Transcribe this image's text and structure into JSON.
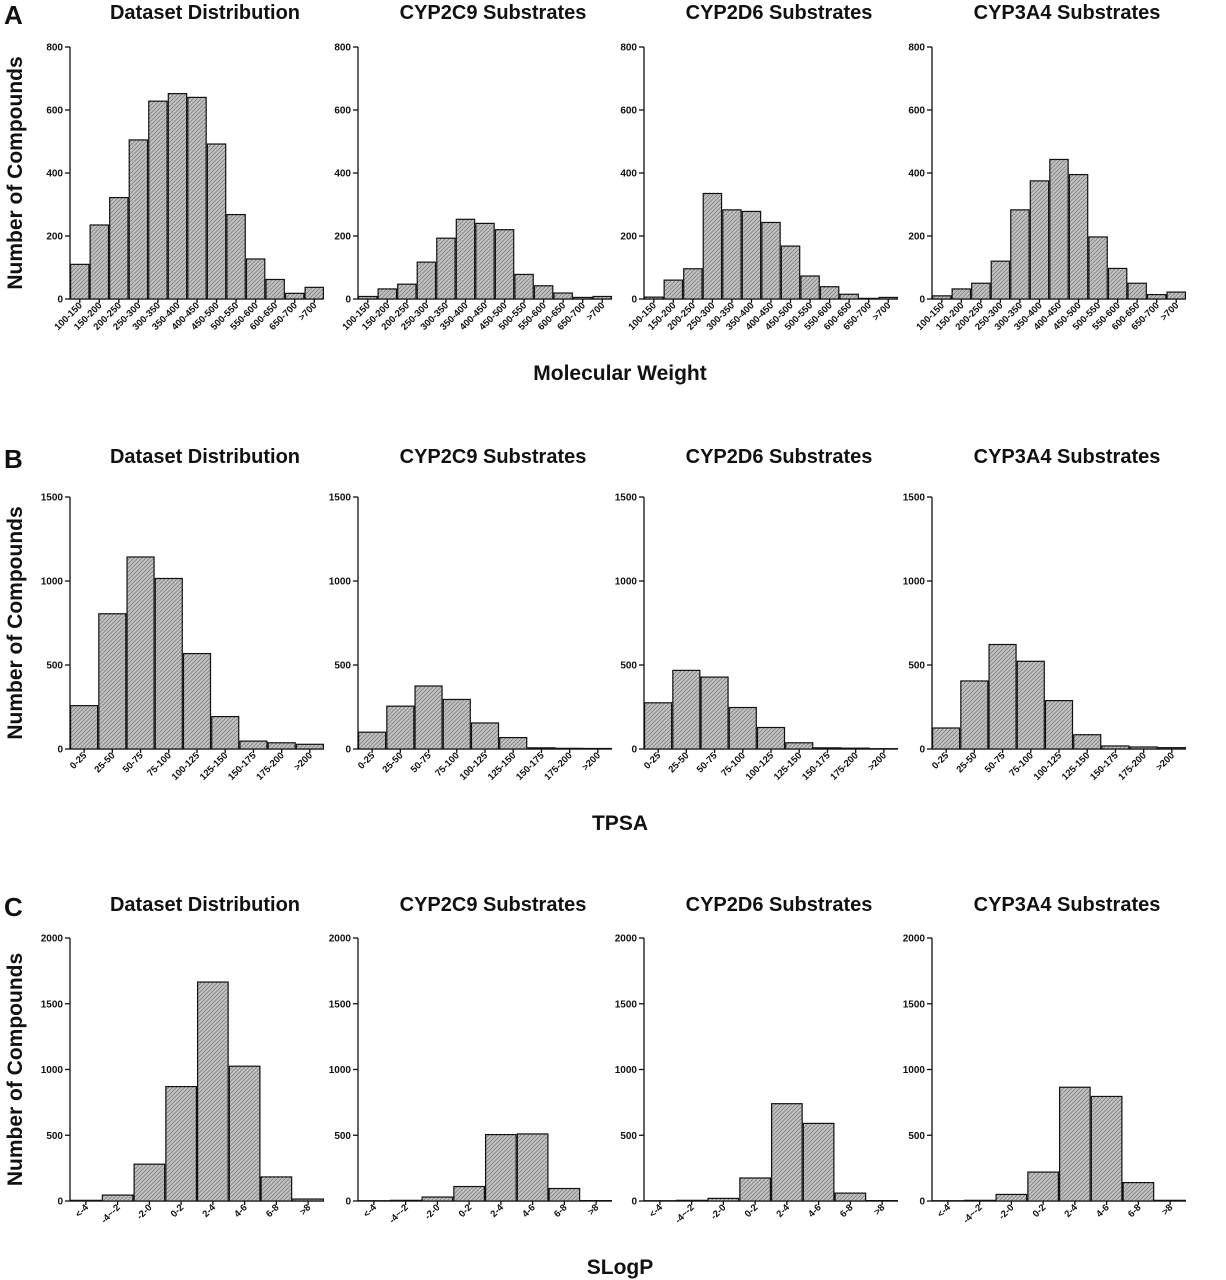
{
  "figure": {
    "ylabel": "Number of Compounds",
    "bar_color": "#bdbdbd"
  },
  "chart_data": [
    {
      "panel": "A",
      "xlabel": "Molecular Weight",
      "ylim": [
        0,
        800
      ],
      "yticks": [
        0,
        200,
        400,
        600,
        800
      ],
      "categories": [
        "100-150",
        "150-200",
        "200-250",
        "250-300",
        "300-350",
        "350-400",
        "400-450",
        "450-500",
        "500-550",
        "550-600",
        "600-650",
        "650-700",
        ">700"
      ],
      "charts": [
        {
          "type": "bar",
          "title": "Dataset Distribution",
          "values": [
            110,
            235,
            322,
            505,
            628,
            652,
            640,
            492,
            268,
            127,
            62,
            18,
            37
          ]
        },
        {
          "type": "bar",
          "title": "CYP2C9 Substrates",
          "values": [
            8,
            32,
            47,
            117,
            193,
            253,
            240,
            220,
            78,
            42,
            19,
            5,
            8
          ]
        },
        {
          "type": "bar",
          "title": "CYP2D6 Substrates",
          "values": [
            6,
            60,
            96,
            335,
            283,
            278,
            243,
            168,
            73,
            39,
            15,
            2,
            5
          ]
        },
        {
          "type": "bar",
          "title": "CYP3A4 Substrates",
          "values": [
            10,
            32,
            50,
            120,
            283,
            375,
            443,
            395,
            197,
            97,
            50,
            14,
            22
          ]
        }
      ]
    },
    {
      "panel": "B",
      "xlabel": "TPSA",
      "ylim": [
        0,
        1500
      ],
      "yticks": [
        0,
        500,
        1000,
        1500
      ],
      "categories": [
        "0-25",
        "25-50",
        "50-75",
        "75-100",
        "100-125",
        "125-150",
        "150-175",
        "175-200",
        ">200"
      ],
      "charts": [
        {
          "type": "bar",
          "title": "Dataset Distribution",
          "values": [
            258,
            805,
            1143,
            1015,
            568,
            193,
            47,
            37,
            28
          ]
        },
        {
          "type": "bar",
          "title": "CYP2C9 Substrates",
          "values": [
            100,
            255,
            375,
            295,
            155,
            68,
            7,
            4,
            3
          ]
        },
        {
          "type": "bar",
          "title": "CYP2D6 Substrates",
          "values": [
            275,
            468,
            428,
            247,
            128,
            37,
            7,
            5,
            2
          ]
        },
        {
          "type": "bar",
          "title": "CYP3A4 Substrates",
          "values": [
            125,
            405,
            622,
            522,
            288,
            85,
            18,
            12,
            8
          ]
        }
      ]
    },
    {
      "panel": "C",
      "xlabel": "SLogP",
      "ylim": [
        0,
        2000
      ],
      "yticks": [
        0,
        500,
        1000,
        1500,
        2000
      ],
      "categories": [
        "<-4",
        "-4~-2",
        "-2-0",
        "0-2",
        "2-4",
        "4-6",
        "6-8",
        ">8"
      ],
      "charts": [
        {
          "type": "bar",
          "title": "Dataset Distribution",
          "values": [
            5,
            45,
            280,
            870,
            1665,
            1025,
            183,
            15
          ]
        },
        {
          "type": "bar",
          "title": "CYP2C9 Substrates",
          "values": [
            2,
            5,
            30,
            110,
            505,
            510,
            95,
            3
          ]
        },
        {
          "type": "bar",
          "title": "CYP2D6 Substrates",
          "values": [
            2,
            5,
            20,
            175,
            740,
            590,
            60,
            3
          ]
        },
        {
          "type": "bar",
          "title": "CYP3A4 Substrates",
          "values": [
            2,
            5,
            50,
            220,
            865,
            795,
            140,
            5
          ]
        }
      ]
    }
  ]
}
